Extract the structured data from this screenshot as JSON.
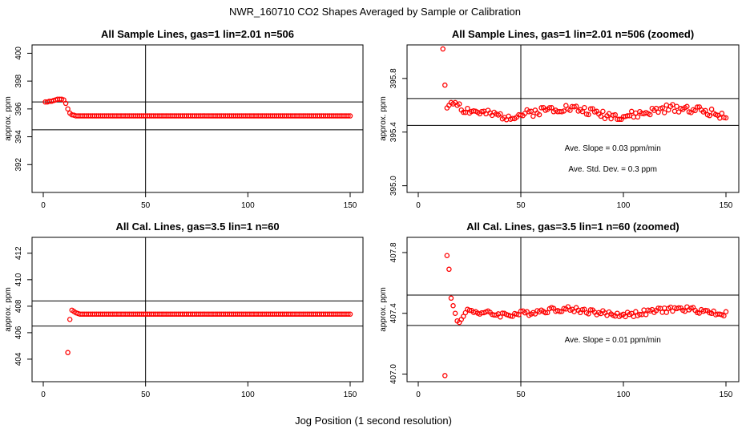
{
  "title": "NWR_160710  CO2 Shapes Averaged by Sample or Calibration",
  "xlabel": "Jog Position (1 second resolution)",
  "colors": {
    "points": "#ff0000",
    "axes": "#000000"
  },
  "chart_data": [
    {
      "type": "scatter",
      "title": "All Sample Lines, gas=1 lin=2.01 n=506",
      "ylabel": "approx. ppm",
      "xlim": [
        0,
        150
      ],
      "ylim": [
        390,
        400.6
      ],
      "xticks": [
        "0",
        "50",
        "100",
        "150"
      ],
      "yticks": [
        "392",
        "394",
        "396",
        "398",
        "400"
      ],
      "hlines": [
        394.5,
        396.5
      ],
      "vline": 50,
      "annotations": [],
      "series": [
        {
          "points": [
            [
              1,
              396.5
            ],
            [
              2,
              396.5
            ],
            [
              3,
              396.55
            ],
            [
              4,
              396.55
            ],
            [
              5,
              396.6
            ],
            [
              6,
              396.65
            ],
            [
              7,
              396.7
            ],
            [
              8,
              396.7
            ],
            [
              9,
              396.7
            ],
            [
              10,
              396.65
            ],
            [
              11,
              396.4
            ],
            [
              12,
              396.0
            ],
            [
              13,
              395.7
            ],
            [
              14,
              395.58
            ],
            [
              15,
              395.55
            ]
          ]
        }
      ],
      "flat": {
        "from": 16,
        "to": 150,
        "step": 1,
        "base": 395.5,
        "wave_amp": 0.0,
        "seed": 1
      }
    },
    {
      "type": "scatter",
      "title": "All Sample Lines, gas=1 lin=2.01 n=506 (zoomed)",
      "ylabel": "approx. ppm",
      "xlim": [
        0,
        150
      ],
      "ylim": [
        394.95,
        396.05
      ],
      "xticks": [
        "0",
        "50",
        "100",
        "150"
      ],
      "yticks": [
        "395.0",
        "395.4",
        "395.8"
      ],
      "ytick_values": [
        395.0,
        395.4,
        395.8
      ],
      "hlines": [
        395.45,
        395.65
      ],
      "vline": 50,
      "annotations": [
        "Ave. Slope =  0.03  ppm/min",
        "Ave. Std. Dev. =  0.3  ppm"
      ],
      "series": [
        {
          "points": [
            [
              12,
              396.02
            ],
            [
              13,
              395.75
            ],
            [
              14,
              395.58
            ],
            [
              15,
              395.6
            ],
            [
              16,
              395.62
            ],
            [
              17,
              395.61
            ],
            [
              18,
              395.62
            ],
            [
              19,
              395.6
            ],
            [
              20,
              395.61
            ]
          ]
        }
      ],
      "flat": {
        "from": 21,
        "to": 150,
        "step": 1,
        "base": 395.55,
        "wave_amp": 0.05,
        "seed": 2
      }
    },
    {
      "type": "scatter",
      "title": "All Cal. Lines, gas=3.5 lin=1 n=60",
      "ylabel": "approx. ppm",
      "xlim": [
        0,
        150
      ],
      "ylim": [
        402.3,
        413.2
      ],
      "xticks": [
        "0",
        "50",
        "100",
        "150"
      ],
      "yticks": [
        "404",
        "406",
        "408",
        "410",
        "412"
      ],
      "hlines": [
        406.5,
        408.4
      ],
      "vline": 50,
      "annotations": [],
      "series": [
        {
          "points": [
            [
              12,
              404.5
            ],
            [
              13,
              407.0
            ],
            [
              14,
              407.7
            ],
            [
              15,
              407.6
            ],
            [
              16,
              407.5
            ],
            [
              17,
              407.45
            ]
          ]
        }
      ],
      "flat": {
        "from": 18,
        "to": 150,
        "step": 1,
        "base": 407.4,
        "wave_amp": 0.0,
        "seed": 3
      }
    },
    {
      "type": "scatter",
      "title": "All Cal. Lines, gas=3.5 lin=1 n=60 (zoomed)",
      "ylabel": "approx. ppm",
      "xlim": [
        0,
        150
      ],
      "ylim": [
        406.95,
        407.9
      ],
      "xticks": [
        "0",
        "50",
        "100",
        "150"
      ],
      "yticks": [
        "407.0",
        "407.4",
        "407.8"
      ],
      "ytick_values": [
        407.0,
        407.4,
        407.8
      ],
      "hlines": [
        407.32,
        407.52
      ],
      "vline": 50,
      "annotations": [
        "Ave. Slope =  0.01  ppm/min"
      ],
      "series": [
        {
          "points": [
            [
              13,
              406.99
            ],
            [
              14,
              407.78
            ],
            [
              15,
              407.69
            ],
            [
              16,
              407.5
            ],
            [
              17,
              407.45
            ],
            [
              18,
              407.4
            ],
            [
              19,
              407.35
            ],
            [
              20,
              407.34
            ],
            [
              21,
              407.36
            ],
            [
              22,
              407.38
            ]
          ]
        }
      ],
      "flat": {
        "from": 23,
        "to": 150,
        "step": 1,
        "base": 407.41,
        "wave_amp": 0.03,
        "seed": 4
      }
    }
  ]
}
